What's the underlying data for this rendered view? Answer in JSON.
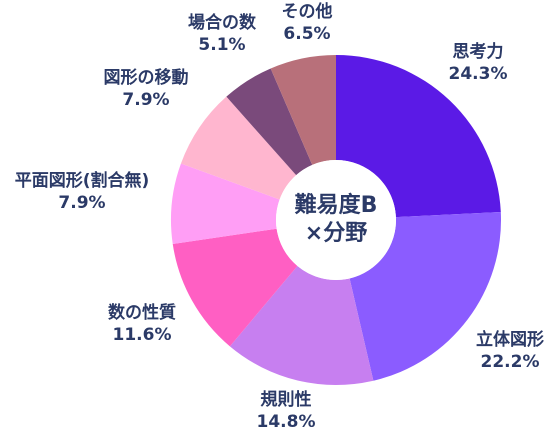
{
  "chart_data": {
    "type": "pie",
    "title": "",
    "center_label": [
      "難易度B",
      "×分野"
    ],
    "slices": [
      {
        "label": "思考力",
        "value": 24.3,
        "value_text": "24.3%",
        "color": "#5b1ae6"
      },
      {
        "label": "立体図形",
        "value": 22.2,
        "value_text": "22.2%",
        "color": "#8b5cff"
      },
      {
        "label": "規則性",
        "value": 14.8,
        "value_text": "14.8%",
        "color": "#c77ff0"
      },
      {
        "label": "数の性質",
        "value": 11.6,
        "value_text": "11.6%",
        "color": "#ff5fc3"
      },
      {
        "label": "平面図形(割合無)",
        "value": 7.9,
        "value_text": "7.9%",
        "color": "#ff9ef5"
      },
      {
        "label": "図形の移動",
        "value": 7.9,
        "value_text": "7.9%",
        "color": "#ffb6cf"
      },
      {
        "label": "場合の数",
        "value": 5.1,
        "value_text": "5.1%",
        "color": "#7a4a7b"
      },
      {
        "label": "その他",
        "value": 6.5,
        "value_text": "6.5%",
        "color": "#b8707a"
      }
    ]
  }
}
